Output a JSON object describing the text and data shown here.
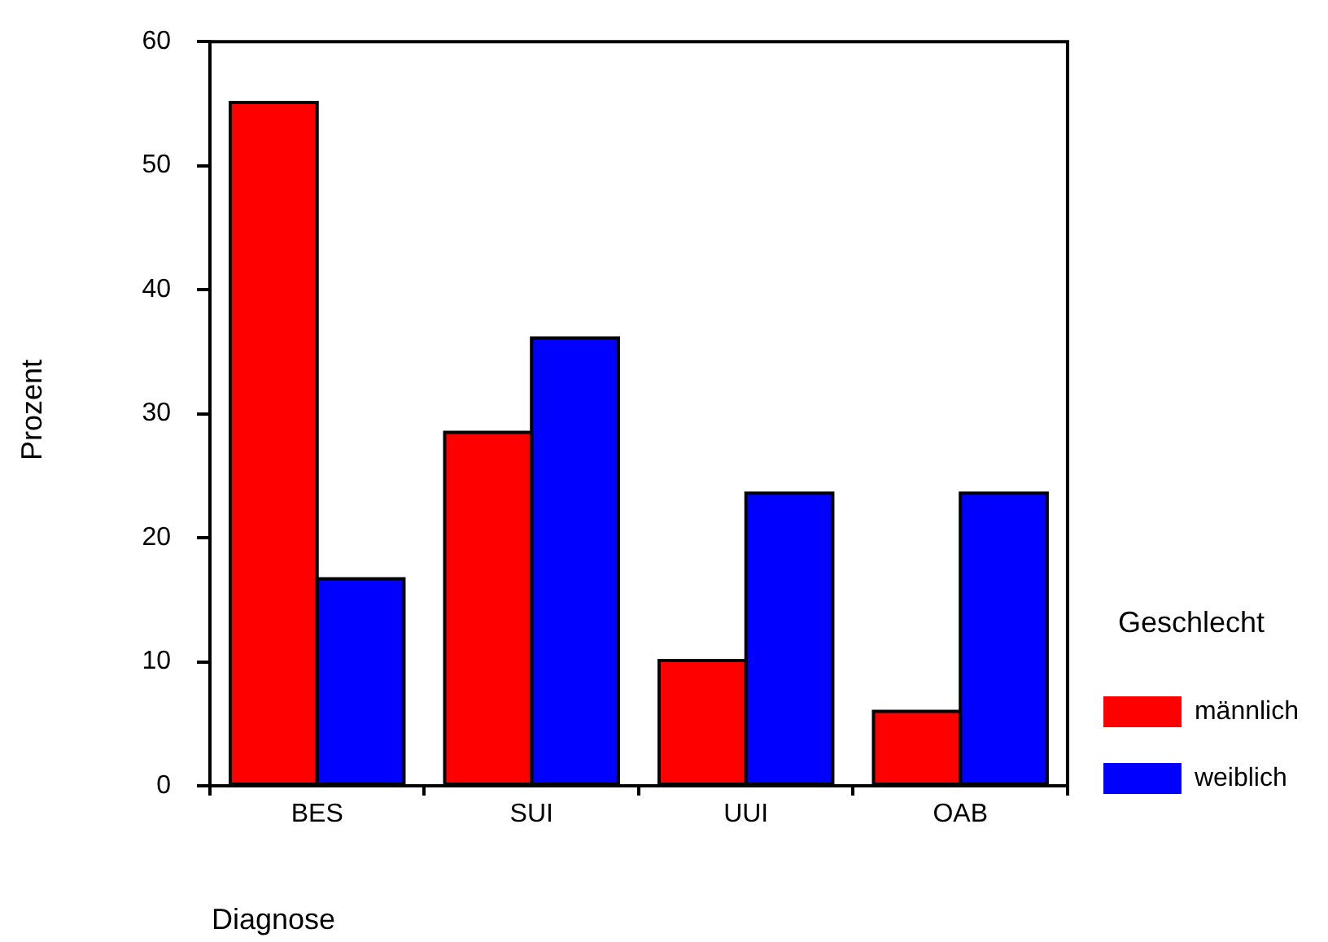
{
  "chart_data": {
    "type": "bar",
    "xlabel": "Diagnose",
    "ylabel": "Prozent",
    "legend_title": "Geschlecht",
    "categories": [
      "BES",
      "SUI",
      "UUI",
      "OAB"
    ],
    "series": [
      {
        "name": "männlich",
        "color": "#ff0000",
        "values": [
          55.1,
          28.5,
          10.1,
          6.0
        ]
      },
      {
        "name": "weiblich",
        "color": "#0000ff",
        "values": [
          16.7,
          36.1,
          23.6,
          23.6
        ]
      }
    ],
    "ylim": [
      0,
      60
    ],
    "yticks": [
      0,
      10,
      20,
      30,
      40,
      50,
      60
    ],
    "grid": false,
    "legend": "right"
  }
}
